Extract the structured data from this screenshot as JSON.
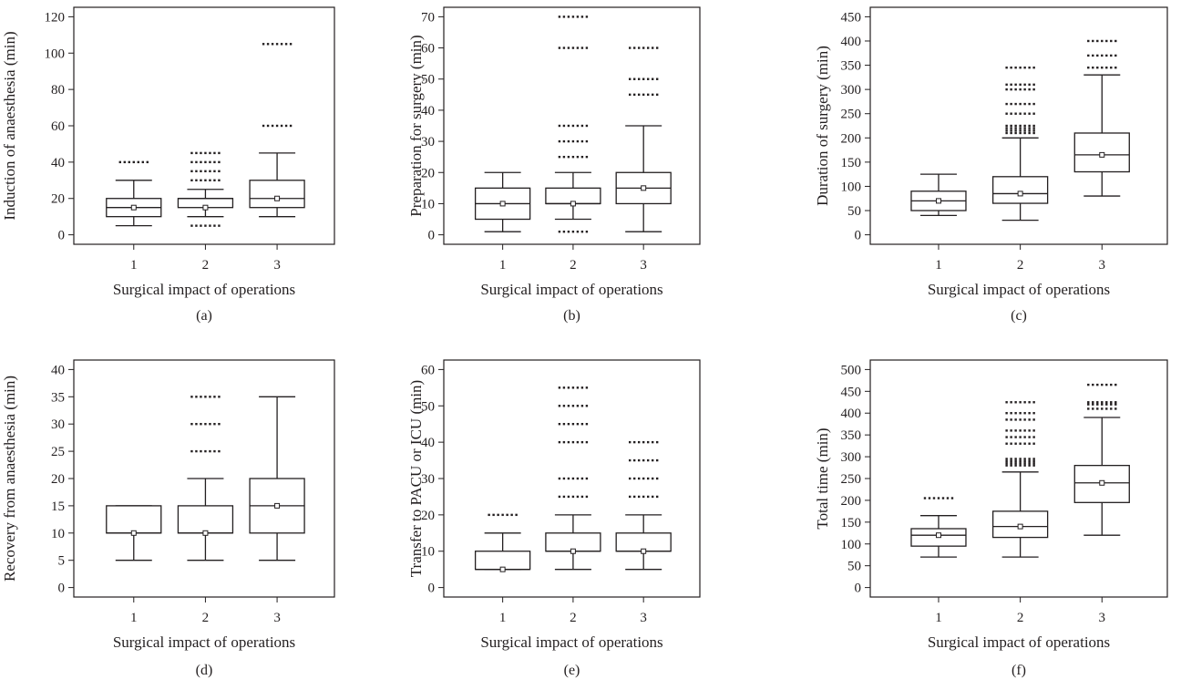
{
  "figure": {
    "panel_labels": [
      "(a)",
      "(b)",
      "(c)",
      "(d)",
      "(e)",
      "(f)"
    ]
  },
  "chart_data": [
    {
      "type": "box",
      "label": "(a)",
      "xlabel": "Surgical impact of operations",
      "ylabel": "Induction of anaesthesia (min)",
      "categories": [
        "1",
        "2",
        "3"
      ],
      "ylim": [
        0,
        120
      ],
      "yticks": [
        0,
        20,
        40,
        60,
        80,
        100,
        120
      ],
      "boxes": [
        {
          "category": "1",
          "min": 5,
          "q1": 10,
          "median": 15,
          "q3": 20,
          "max": 30,
          "mean": 15,
          "outliers": [
            40
          ]
        },
        {
          "category": "2",
          "min": 10,
          "q1": 15,
          "median": 20,
          "q3": 20,
          "max": 25,
          "mean": 15,
          "outliers": [
            5,
            30,
            35,
            40,
            45
          ]
        },
        {
          "category": "3",
          "min": 10,
          "q1": 15,
          "median": 20,
          "q3": 30,
          "max": 45,
          "mean": 20,
          "outliers": [
            60,
            105
          ]
        }
      ]
    },
    {
      "type": "box",
      "label": "(b)",
      "xlabel": "Surgical impact of operations",
      "ylabel": "Preparation for surgery (min)",
      "categories": [
        "1",
        "2",
        "3"
      ],
      "ylim": [
        0,
        70
      ],
      "yticks": [
        0,
        10,
        20,
        30,
        40,
        50,
        60,
        70
      ],
      "boxes": [
        {
          "category": "1",
          "min": 1,
          "q1": 5,
          "median": 10,
          "q3": 15,
          "max": 20,
          "mean": 10,
          "outliers": []
        },
        {
          "category": "2",
          "min": 5,
          "q1": 10,
          "median": 10,
          "q3": 15,
          "max": 20,
          "mean": 10,
          "outliers": [
            1,
            25,
            30,
            35,
            60,
            70
          ]
        },
        {
          "category": "3",
          "min": 1,
          "q1": 10,
          "median": 15,
          "q3": 20,
          "max": 35,
          "mean": 15,
          "outliers": [
            45,
            50,
            60
          ]
        }
      ]
    },
    {
      "type": "box",
      "label": "(c)",
      "xlabel": "Surgical impact of operations",
      "ylabel": "Duration of surgery (min)",
      "categories": [
        "1",
        "2",
        "3"
      ],
      "ylim": [
        0,
        450
      ],
      "yticks": [
        0,
        50,
        100,
        150,
        200,
        250,
        300,
        350,
        400,
        450
      ],
      "boxes": [
        {
          "category": "1",
          "min": 40,
          "q1": 50,
          "median": 70,
          "q3": 90,
          "max": 125,
          "mean": 70,
          "outliers": []
        },
        {
          "category": "2",
          "min": 30,
          "q1": 65,
          "median": 85,
          "q3": 120,
          "max": 200,
          "mean": 85,
          "outliers": [
            210,
            215,
            220,
            225,
            250,
            270,
            300,
            310,
            345
          ]
        },
        {
          "category": "3",
          "min": 80,
          "q1": 130,
          "median": 165,
          "q3": 210,
          "max": 330,
          "mean": 165,
          "outliers": [
            345,
            370,
            400
          ]
        }
      ]
    },
    {
      "type": "box",
      "label": "(d)",
      "xlabel": "Surgical impact of operations",
      "ylabel": "Recovery from anaesthesia (min)",
      "categories": [
        "1",
        "2",
        "3"
      ],
      "ylim": [
        0,
        40
      ],
      "yticks": [
        0,
        5,
        10,
        15,
        20,
        25,
        30,
        35,
        40
      ],
      "boxes": [
        {
          "category": "1",
          "min": 5,
          "q1": 10,
          "median": 10,
          "q3": 15,
          "max": 15,
          "mean": 10,
          "outliers": []
        },
        {
          "category": "2",
          "min": 5,
          "q1": 10,
          "median": 10,
          "q3": 15,
          "max": 20,
          "mean": 10,
          "outliers": [
            25,
            30,
            35
          ]
        },
        {
          "category": "3",
          "min": 5,
          "q1": 10,
          "median": 15,
          "q3": 20,
          "max": 35,
          "mean": 15,
          "outliers": []
        }
      ]
    },
    {
      "type": "box",
      "label": "(e)",
      "xlabel": "Surgical impact of operations",
      "ylabel": "Transfer to PACU or ICU (min)",
      "categories": [
        "1",
        "2",
        "3"
      ],
      "ylim": [
        0,
        60
      ],
      "yticks": [
        0,
        10,
        20,
        30,
        40,
        50,
        60
      ],
      "boxes": [
        {
          "category": "1",
          "min": 5,
          "q1": 5,
          "median": 5,
          "q3": 10,
          "max": 15,
          "mean": 5,
          "outliers": [
            20
          ]
        },
        {
          "category": "2",
          "min": 5,
          "q1": 10,
          "median": 10,
          "q3": 15,
          "max": 20,
          "mean": 10,
          "outliers": [
            25,
            30,
            40,
            45,
            50,
            55
          ]
        },
        {
          "category": "3",
          "min": 5,
          "q1": 10,
          "median": 10,
          "q3": 15,
          "max": 20,
          "mean": 10,
          "outliers": [
            25,
            30,
            35,
            40
          ]
        }
      ]
    },
    {
      "type": "box",
      "label": "(f)",
      "xlabel": "Surgical impact of operations",
      "ylabel": "Total time (min)",
      "categories": [
        "1",
        "2",
        "3"
      ],
      "ylim": [
        0,
        500
      ],
      "yticks": [
        0,
        50,
        100,
        150,
        200,
        250,
        300,
        350,
        400,
        450,
        500
      ],
      "boxes": [
        {
          "category": "1",
          "min": 70,
          "q1": 95,
          "median": 120,
          "q3": 135,
          "max": 165,
          "mean": 120,
          "outliers": [
            205
          ]
        },
        {
          "category": "2",
          "min": 70,
          "q1": 115,
          "median": 140,
          "q3": 175,
          "max": 265,
          "mean": 140,
          "outliers": [
            280,
            285,
            290,
            295,
            330,
            345,
            360,
            385,
            400,
            425
          ]
        },
        {
          "category": "3",
          "min": 120,
          "q1": 195,
          "median": 240,
          "q3": 280,
          "max": 390,
          "mean": 240,
          "outliers": [
            410,
            420,
            425,
            465
          ]
        }
      ]
    }
  ]
}
